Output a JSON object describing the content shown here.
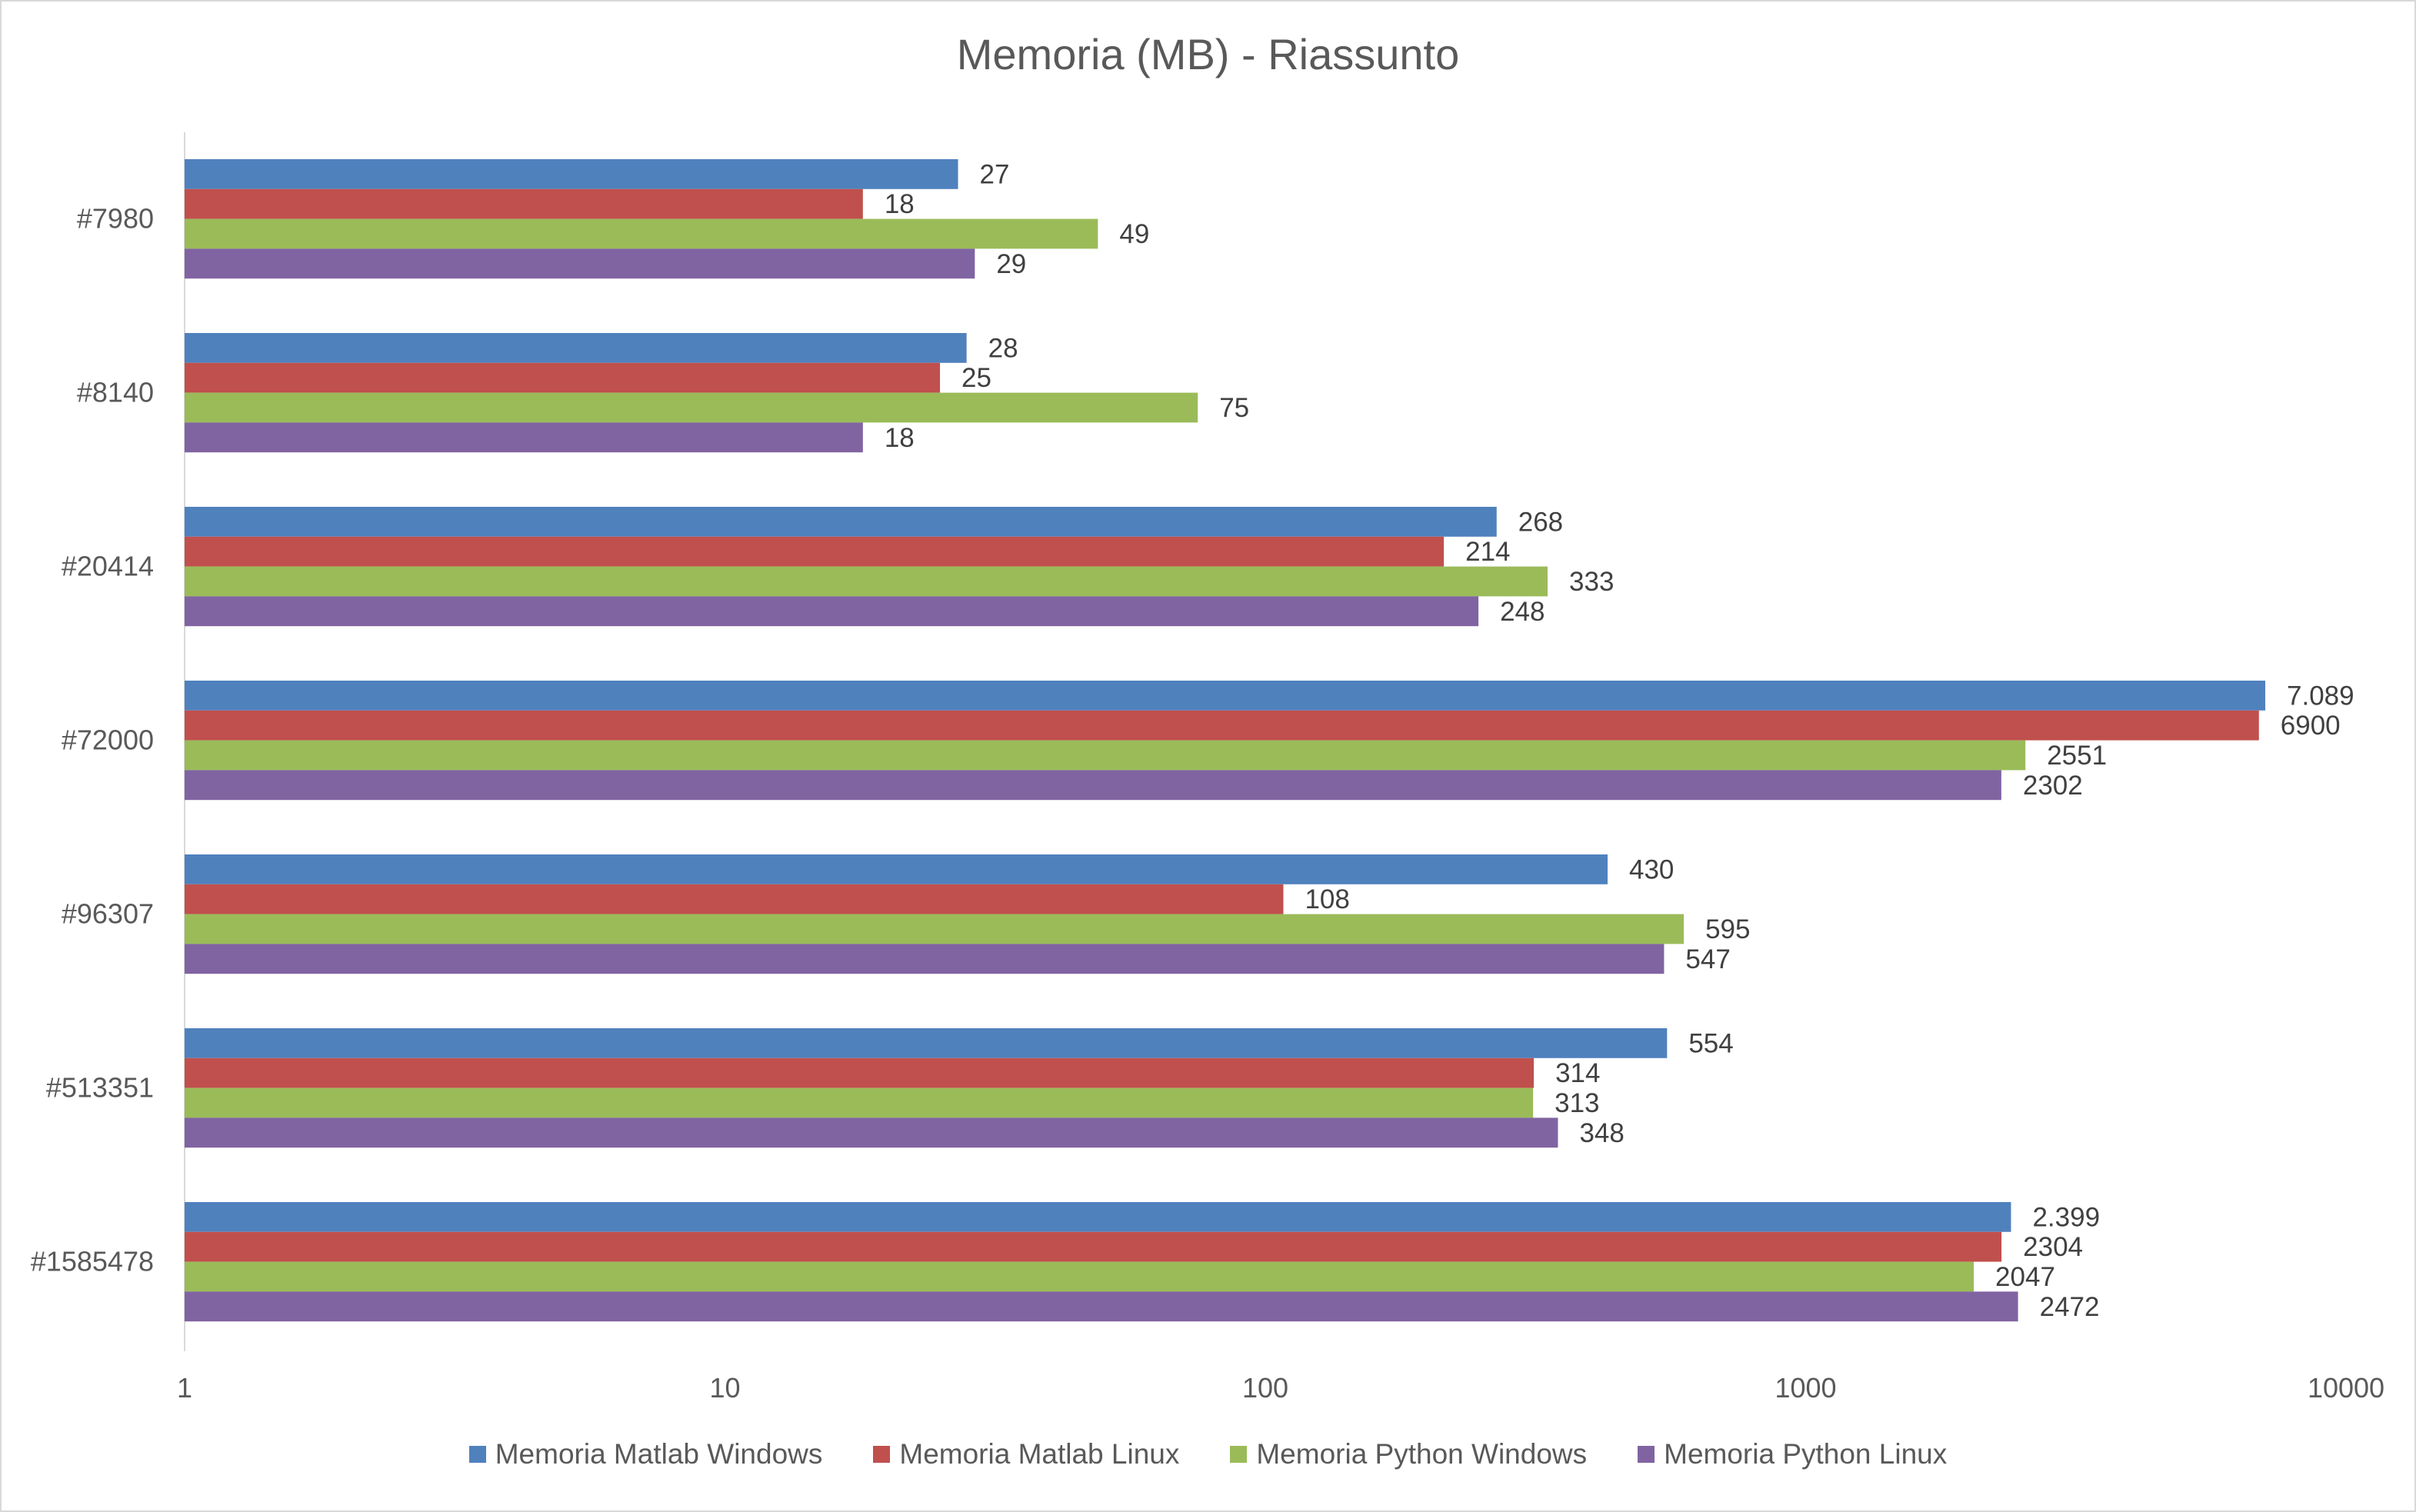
{
  "chart_data": {
    "type": "bar",
    "orientation": "horizontal",
    "title": "Memoria (MB) - Riassunto",
    "xscale": "log",
    "xlim": [
      1,
      10000
    ],
    "xticks": [
      "1",
      "10",
      "100",
      "1000",
      "10000"
    ],
    "xtick_values": [
      1,
      10,
      100,
      1000,
      10000
    ],
    "grid": false,
    "legend_position": "bottom",
    "categories": [
      "#7980",
      "#8140",
      "#20414",
      "#72000",
      "#96307",
      "#513351",
      "#1585478"
    ],
    "series": [
      {
        "name": "Memoria Matlab Windows",
        "color": "#4f81bd",
        "values": [
          27,
          28,
          268,
          7089,
          430,
          554,
          2399
        ],
        "labels": [
          "27",
          "28",
          "268",
          "7.089",
          "430",
          "554",
          "2.399"
        ]
      },
      {
        "name": "Memoria Matlab Linux",
        "color": "#c0504d",
        "values": [
          18,
          25,
          214,
          6900,
          108,
          314,
          2304
        ],
        "labels": [
          "18",
          "25",
          "214",
          "6900",
          "108",
          "314",
          "2304"
        ]
      },
      {
        "name": "Memoria Python Windows",
        "color": "#9bbb59",
        "values": [
          49,
          75,
          333,
          2551,
          595,
          313,
          2047
        ],
        "labels": [
          "49",
          "75",
          "333",
          "2551",
          "595",
          "313",
          "2047"
        ]
      },
      {
        "name": "Memoria Python Linux",
        "color": "#8064a2",
        "values": [
          29,
          18,
          248,
          2302,
          547,
          348,
          2472
        ],
        "labels": [
          "29",
          "18",
          "248",
          "2302",
          "547",
          "348",
          "2472"
        ]
      }
    ]
  }
}
